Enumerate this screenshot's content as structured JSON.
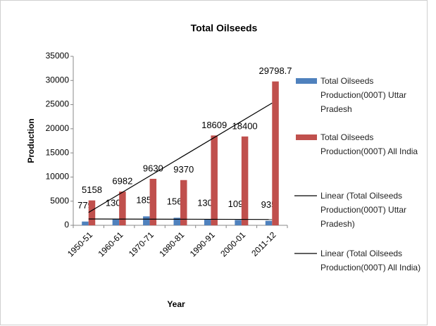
{
  "chart_data": {
    "type": "bar",
    "title": "Total Oilseeds",
    "x_label": "Year",
    "y_label": "Production",
    "categories": [
      "1950-51",
      "1960-61",
      "1970-71",
      "1980-81",
      "1990-91",
      "2000-01",
      "2011-12"
    ],
    "series": [
      {
        "name": "Total Oilseeds Production(000T) Uttar Pradesh",
        "color": "#4f81bd",
        "values": [
          779,
          1306,
          1852,
          1564,
          1308,
          1096,
          935
        ]
      },
      {
        "name": "Total Oilseeds Production(000T) All India",
        "color": "#c0504d",
        "values": [
          5158,
          6982,
          9630,
          9370,
          18609,
          18400,
          29798.7
        ]
      }
    ],
    "trendlines": [
      {
        "name": "Linear (Total Oilseeds Production(000T) Uttar Pradesh)",
        "series": 0,
        "color": "#000000"
      },
      {
        "name": "Linear (Total Oilseeds Production(000T) All India)",
        "series": 1,
        "color": "#000000"
      }
    ],
    "ylim": [
      0,
      35000
    ],
    "yticks": [
      0,
      5000,
      10000,
      15000,
      20000,
      25000,
      30000,
      35000
    ],
    "legend": "right"
  }
}
